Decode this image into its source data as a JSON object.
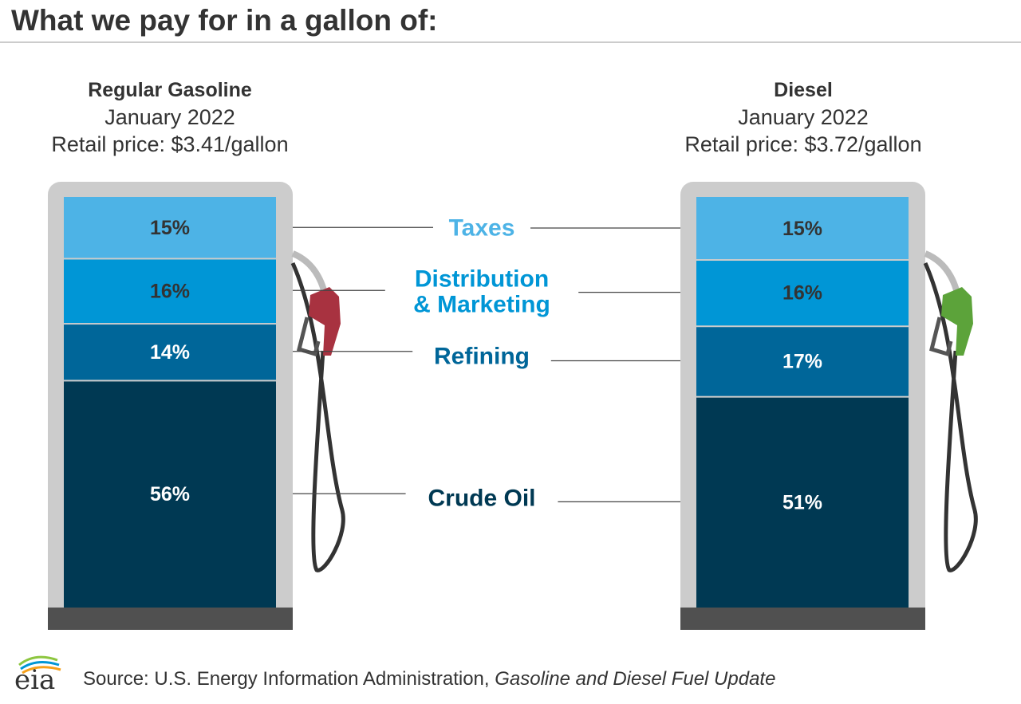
{
  "title": "What we pay for in a gallon of:",
  "colors": {
    "taxes": "#4db3e6",
    "distribution": "#0096d6",
    "refining": "#006699",
    "crude": "#003953",
    "pump_frame": "#cccccc",
    "pump_base": "#505050",
    "gas_nozzle": "#a83240",
    "diesel_nozzle": "#5ca33a",
    "hose": "#333333"
  },
  "chart_data": [
    {
      "type": "bar",
      "stacked": true,
      "title": "Regular Gasoline",
      "period": "January 2022",
      "price_label": "Retail price: $3.41/gallon",
      "categories": [
        "Taxes",
        "Distribution & Marketing",
        "Refining",
        "Crude Oil"
      ],
      "values": [
        15,
        16,
        14,
        56
      ],
      "value_labels": [
        "15%",
        "16%",
        "14%",
        "56%"
      ],
      "unit": "%"
    },
    {
      "type": "bar",
      "stacked": true,
      "title": "Diesel",
      "period": "January 2022",
      "price_label": "Retail price: $3.72/gallon",
      "categories": [
        "Taxes",
        "Distribution & Marketing",
        "Refining",
        "Crude Oil"
      ],
      "values": [
        15,
        16,
        17,
        51
      ],
      "value_labels": [
        "15%",
        "16%",
        "17%",
        "51%"
      ],
      "unit": "%"
    }
  ],
  "legend": {
    "taxes": "Taxes",
    "distribution_line1": "Distribution",
    "distribution_line2": "& Marketing",
    "refining": "Refining",
    "crude": "Crude Oil"
  },
  "source": {
    "prefix": "Source: U.S. Energy Information Administration, ",
    "publication": "Gasoline and Diesel Fuel Update"
  },
  "logo": {
    "text": "eia"
  }
}
